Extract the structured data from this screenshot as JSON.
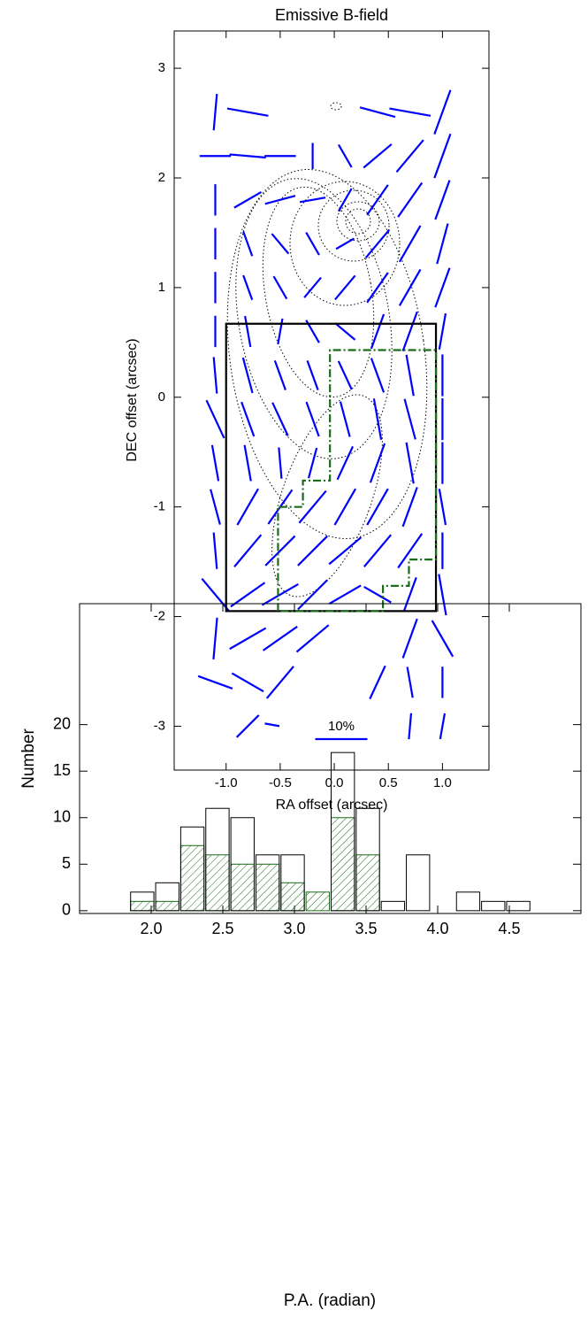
{
  "chart_data": [
    {
      "type": "vector-map",
      "title": "Emissive B-field",
      "x_label": "RA offset (arcsec)",
      "y_label": "DEC offset (arcsec)",
      "xlim": [
        -1.48,
        1.43
      ],
      "ylim": [
        -3.4,
        3.34
      ],
      "xticks": [
        {
          "value": -1.0,
          "label": "-1.0"
        },
        -0.5,
        {
          "value": 0.0,
          "label": "0.0"
        },
        0.5,
        {
          "value": 1.0,
          "label": "1.0"
        }
      ],
      "yticks": [
        -3,
        -2,
        -1,
        0,
        1,
        2,
        3
      ],
      "vector_color": "#0000ff",
      "vector_rows": [
        {
          "y": 2.6,
          "x": [
            -1.1,
            -0.8,
            0.4,
            0.7,
            1.0
          ],
          "angle": [
            5,
            100,
            105,
            100,
            20
          ],
          "p": [
            7,
            8,
            7,
            8,
            9
          ]
        },
        {
          "y": 2.2,
          "x": [
            -1.1,
            -0.8,
            -0.5,
            -0.2,
            0.1,
            0.4,
            0.7,
            1.0
          ],
          "angle": [
            90,
            95,
            90,
            0,
            -30,
            50,
            40,
            20
          ],
          "p": [
            6,
            7,
            6,
            5,
            5,
            7,
            8,
            9
          ]
        },
        {
          "y": 1.8,
          "x": [
            -1.1,
            -0.8,
            -0.5,
            -0.2,
            0.1,
            0.4,
            0.7,
            1.0
          ],
          "angle": [
            0,
            60,
            75,
            80,
            30,
            35,
            35,
            20
          ],
          "p": [
            6,
            6,
            6,
            5,
            5,
            7,
            8,
            8
          ]
        },
        {
          "y": 1.4,
          "x": [
            -1.1,
            -0.8,
            -0.5,
            -0.2,
            0.1,
            0.4,
            0.7,
            1.0
          ],
          "angle": [
            0,
            -20,
            -40,
            -30,
            60,
            40,
            30,
            15
          ],
          "p": [
            6,
            5,
            5,
            5,
            4,
            7,
            8,
            8
          ]
        },
        {
          "y": 1.0,
          "x": [
            -1.1,
            -0.8,
            -0.5,
            -0.2,
            0.1,
            0.4,
            0.7,
            1.0
          ],
          "angle": [
            0,
            -20,
            -30,
            40,
            40,
            35,
            30,
            20
          ],
          "p": [
            6,
            5,
            5,
            5,
            6,
            7,
            8,
            8
          ]
        },
        {
          "y": 0.6,
          "x": [
            -1.1,
            -0.8,
            -0.5,
            -0.2,
            0.1,
            0.4,
            0.7,
            1.0
          ],
          "angle": [
            0,
            -10,
            10,
            -30,
            -50,
            20,
            20,
            10
          ],
          "p": [
            6,
            6,
            5,
            5,
            5,
            7,
            8,
            7
          ]
        },
        {
          "y": 0.2,
          "x": [
            -1.1,
            -0.8,
            -0.5,
            -0.2,
            0.1,
            0.4,
            0.7,
            1.0
          ],
          "angle": [
            -5,
            -15,
            -20,
            -20,
            -25,
            -20,
            -10,
            0
          ],
          "p": [
            7,
            7,
            6,
            6,
            6,
            7,
            8,
            8
          ]
        },
        {
          "y": -0.2,
          "x": [
            -1.1,
            -0.8,
            -0.5,
            -0.2,
            0.1,
            0.4,
            0.7,
            1.0
          ],
          "angle": [
            -25,
            -20,
            -25,
            -20,
            -15,
            -10,
            -15,
            0
          ],
          "p": [
            8,
            7,
            7,
            7,
            7,
            8,
            8,
            8
          ]
        },
        {
          "y": -0.6,
          "x": [
            -1.1,
            -0.8,
            -0.5,
            -0.2,
            0.1,
            0.4,
            0.7,
            1.0
          ],
          "angle": [
            -10,
            -10,
            -5,
            15,
            25,
            20,
            -10,
            0
          ],
          "p": [
            7,
            7,
            6,
            6,
            7,
            8,
            8,
            8
          ]
        },
        {
          "y": -1.0,
          "x": [
            -1.1,
            -0.8,
            -0.5,
            -0.2,
            0.1,
            0.4,
            0.7,
            1.0
          ],
          "angle": [
            -15,
            30,
            35,
            40,
            30,
            30,
            20,
            -10
          ],
          "p": [
            7,
            8,
            8,
            8,
            8,
            8,
            8,
            7
          ]
        },
        {
          "y": -1.4,
          "x": [
            -1.1,
            -0.8,
            -0.5,
            -0.2,
            0.1,
            0.4,
            0.7,
            1.0
          ],
          "angle": [
            -5,
            40,
            45,
            45,
            50,
            40,
            35,
            0
          ],
          "p": [
            7,
            8,
            8,
            8,
            8,
            8,
            8,
            7
          ]
        },
        {
          "y": -1.8,
          "x": [
            -1.1,
            -0.8,
            -0.5,
            -0.2,
            0.1,
            0.4,
            0.7,
            1.0
          ],
          "angle": [
            -40,
            55,
            60,
            45,
            60,
            -60,
            20,
            -10
          ],
          "p": [
            8,
            8,
            8,
            8,
            7,
            6,
            7,
            8
          ]
        },
        {
          "y": -2.2,
          "x": [
            -1.1,
            -0.8,
            -0.5,
            -0.2,
            0.7,
            1.0
          ],
          "angle": [
            5,
            60,
            55,
            50,
            20,
            -30
          ],
          "p": [
            8,
            8,
            8,
            8,
            8,
            8
          ]
        },
        {
          "y": -2.6,
          "x": [
            -1.1,
            -0.8,
            -0.5,
            0.4,
            0.7,
            1.0
          ],
          "angle": [
            -70,
            -60,
            40,
            25,
            -10,
            0
          ],
          "p": [
            7,
            7,
            8,
            7,
            6,
            6
          ]
        },
        {
          "y": -3.0,
          "x": [
            -0.8,
            -0.5,
            0.7,
            1.0
          ],
          "angle": [
            45,
            -80,
            5,
            10
          ],
          "p": [
            6,
            6,
            5,
            5
          ]
        }
      ],
      "regions": [
        {
          "color": "#000000",
          "x": [
            -1.0,
            -1.0,
            0.94,
            0.94
          ],
          "y": [
            -1.95,
            0.67,
            0.67,
            -1.95
          ]
        },
        {
          "color": "#1a6b1a",
          "dashed": true,
          "x": [
            -0.52,
            -0.52,
            -0.29,
            -0.29,
            -0.04,
            -0.04,
            0.94,
            0.94,
            0.69,
            0.69,
            0.45,
            0.45
          ],
          "y": [
            -1.95,
            -1.0,
            -1.0,
            -0.76,
            -0.76,
            0.43,
            0.43,
            -1.48,
            -1.48,
            -1.72,
            -1.72,
            -1.95
          ]
        }
      ],
      "scale_bar": {
        "label": "10%",
        "value": 10
      }
    },
    {
      "type": "histogram",
      "x_label": "P.A. (radian)",
      "y_label": "Number",
      "xlim": [
        1.5,
        5.0
      ],
      "ylim": [
        -0.3,
        33
      ],
      "xticks": [
        {
          "value": 2.0,
          "label": "2.0"
        },
        2.5,
        {
          "value": 3.0,
          "label": "3.0"
        },
        3.5,
        {
          "value": 4.0,
          "label": "4.0"
        },
        4.5
      ],
      "yticks": [
        0,
        5,
        10,
        15,
        20
      ],
      "bins": [
        1.85,
        2.025,
        2.2,
        2.375,
        2.55,
        2.725,
        2.9,
        3.075,
        3.25,
        3.425,
        3.6,
        3.775,
        3.95,
        4.125,
        4.3,
        4.475,
        4.65
      ],
      "series": [
        {
          "color": "#000000",
          "values": [
            2,
            3,
            9,
            11,
            10,
            6,
            6,
            0,
            17,
            11,
            1,
            6,
            0,
            2,
            1,
            1
          ]
        },
        {
          "color": "#1a6b1a",
          "hatch": true,
          "values": [
            1,
            1,
            7,
            6,
            5,
            5,
            3,
            2,
            10,
            6,
            0,
            0,
            0,
            0,
            0,
            0
          ]
        }
      ]
    }
  ]
}
